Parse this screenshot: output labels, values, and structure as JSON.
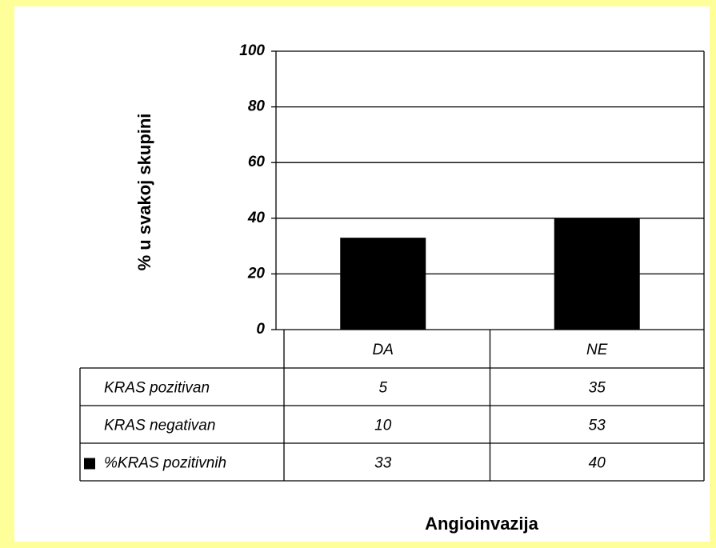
{
  "chart_data": {
    "type": "bar",
    "ylabel": "% u svakoj skupini",
    "xlabel": "Angioinvazija",
    "categories": [
      "DA",
      "NE"
    ],
    "series": [
      {
        "name": "%KRAS pozitivnih",
        "color": "#000000",
        "values": [
          33,
          40
        ]
      }
    ],
    "table_rows": [
      {
        "name": "KRAS pozitivan",
        "values": [
          5,
          35
        ]
      },
      {
        "name": "KRAS negativan",
        "values": [
          10,
          53
        ]
      }
    ],
    "ylim": [
      0,
      100
    ],
    "yticks": [
      0,
      20,
      40,
      60,
      80,
      100
    ],
    "grid": true
  }
}
